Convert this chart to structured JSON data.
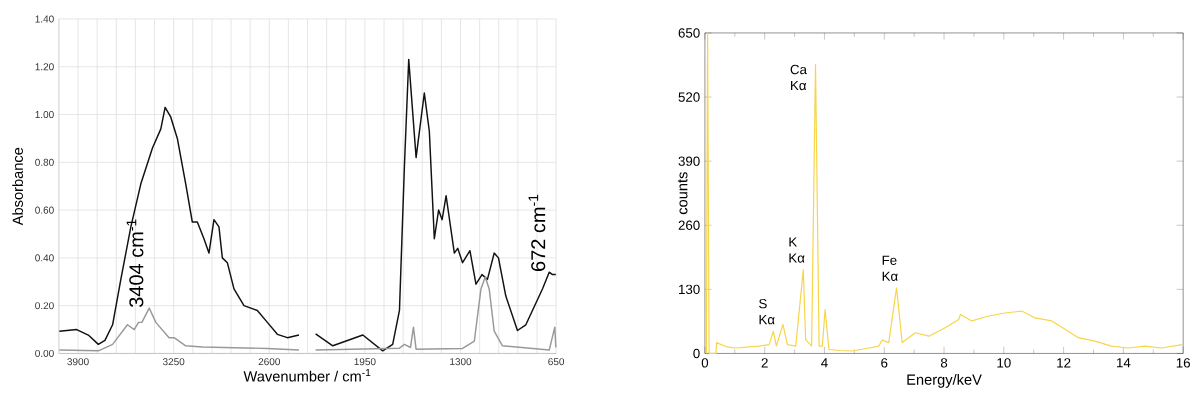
{
  "chart_data": [
    {
      "type": "line",
      "xlabel": "Wavenumber / cm$^{-1}$",
      "ylabel": "Absorbance",
      "xlim": [
        4030,
        650
      ],
      "ylim": [
        0,
        1.4
      ],
      "xticks": [
        3900,
        3250,
        2600,
        1950,
        1300,
        650
      ],
      "yticks": [
        {
          "value": 0,
          "label": "0.00"
        },
        {
          "value": 0.2,
          "label": "0.20"
        },
        {
          "value": 0.4,
          "label": "0.40"
        },
        {
          "value": 0.6,
          "label": "0.60"
        },
        {
          "value": 0.8,
          "label": "0.80"
        },
        {
          "value": 1.0,
          "label": "1.00"
        },
        {
          "value": 1.2,
          "label": "1.20"
        },
        {
          "value": 1.4,
          "label": "1.40"
        }
      ],
      "grid": true,
      "marker": "none",
      "series": [
        {
          "color": "#111111",
          "x": [
            4027,
            3909,
            3830,
            3762,
            3717,
            3665,
            3609,
            3541,
            3473,
            3394,
            3337,
            3308,
            3270,
            3225,
            3168,
            3123,
            3089,
            3044,
            3010,
            2976,
            2942,
            2919,
            2885,
            2840,
            2772,
            2681,
            2613,
            2545,
            2477,
            2398,
            2340,
            2285,
            2168,
            1964,
            1829,
            1761,
            1715,
            1681,
            1652,
            1602,
            1546,
            1512,
            1478,
            1449,
            1425,
            1398,
            1342,
            1319,
            1286,
            1236,
            1195,
            1154,
            1117,
            1071,
            1042,
            992,
            913,
            856,
            743,
            697,
            675,
            652
          ],
          "values": [
            0.093,
            0.1,
            0.077,
            0.038,
            0.055,
            0.12,
            0.31,
            0.53,
            0.71,
            0.86,
            0.94,
            1.03,
            0.99,
            0.9,
            0.71,
            0.55,
            0.55,
            0.48,
            0.42,
            0.56,
            0.53,
            0.4,
            0.38,
            0.27,
            0.2,
            0.18,
            0.13,
            0.08,
            0.066,
            0.077,
            null,
            0.082,
            0.032,
            0.077,
            0.011,
            0.038,
            0.18,
            0.79,
            1.23,
            0.82,
            1.09,
            0.93,
            0.48,
            0.6,
            0.56,
            0.66,
            0.42,
            0.44,
            0.38,
            0.43,
            0.29,
            0.33,
            0.31,
            0.42,
            0.4,
            0.24,
            0.096,
            0.12,
            0.27,
            0.34,
            0.33,
            0.33
          ]
        },
        {
          "color": "#999999",
          "x": [
            4027,
            3762,
            3665,
            3564,
            3518,
            3489,
            3466,
            3416,
            3371,
            3281,
            3247,
            3168,
            3055,
            2613,
            2398,
            2340,
            2285,
            1715,
            1681,
            1640,
            1620,
            1602,
            1286,
            1206,
            1161,
            1132,
            1105,
            1071,
            1015,
            697,
            659,
            652
          ],
          "values": [
            0.014,
            0.011,
            0.038,
            0.12,
            0.1,
            0.13,
            0.13,
            0.19,
            0.13,
            0.066,
            0.066,
            0.032,
            0.027,
            0.021,
            0.014,
            null,
            0.014,
            0.022,
            0.038,
            0.025,
            0.11,
            0.018,
            0.021,
            0.052,
            0.27,
            0.32,
            0.27,
            0.093,
            0.032,
            0.014,
            0.11,
            0.025
          ]
        }
      ],
      "annotations": [
        {
          "text": "3404 cm$^{-1}$",
          "x": 3404,
          "y": 0.19
        },
        {
          "text": "672 cm$^{-1}$",
          "x": 672,
          "y": 0.34
        }
      ]
    },
    {
      "type": "line",
      "xlabel": "Energy/keV",
      "ylabel": "counts",
      "xlim": [
        0,
        16
      ],
      "ylim": [
        0,
        650
      ],
      "xticks": [
        0,
        2,
        4,
        6,
        8,
        10,
        12,
        14,
        16
      ],
      "yticks": [
        0,
        130,
        260,
        390,
        520,
        650
      ],
      "marker": "none",
      "series": [
        {
          "color": "#f7d54a",
          "x": [
            0.05,
            0.09,
            0.14,
            0.37,
            0.39,
            0.7,
            1.03,
            1.4,
            1.81,
            2.15,
            2.29,
            2.39,
            2.61,
            2.76,
            3.04,
            3.29,
            3.37,
            3.57,
            3.7,
            3.82,
            3.93,
            4.02,
            4.15,
            4.5,
            4.93,
            5.4,
            5.82,
            5.93,
            6.15,
            6.41,
            6.6,
            7.04,
            7.49,
            8.04,
            8.49,
            8.55,
            8.93,
            9.49,
            10.05,
            10.6,
            11.05,
            11.6,
            12.05,
            12.49,
            13.05,
            13.6,
            14.16,
            14.72,
            15.27,
            15.96
          ],
          "values": [
            0,
            650,
            0,
            0,
            22,
            14,
            11,
            13,
            15,
            18,
            45,
            15,
            59,
            18,
            15,
            170,
            28,
            15,
            586,
            15,
            15,
            89,
            8,
            6,
            5,
            10,
            15,
            27,
            22,
            133,
            22,
            42,
            35,
            52,
            69,
            79,
            66,
            76,
            82,
            86,
            72,
            66,
            49,
            32,
            25,
            15,
            11,
            15,
            11,
            18
          ]
        }
      ],
      "annotations": [
        {
          "text": "S Kα",
          "x": 2.29,
          "y": 45
        },
        {
          "text": "K Kα",
          "x": 3.29,
          "y": 170
        },
        {
          "text": "Ca Kα",
          "x": 3.7,
          "y": 586
        },
        {
          "text": "Fe Kα",
          "x": 6.41,
          "y": 133
        }
      ]
    }
  ]
}
